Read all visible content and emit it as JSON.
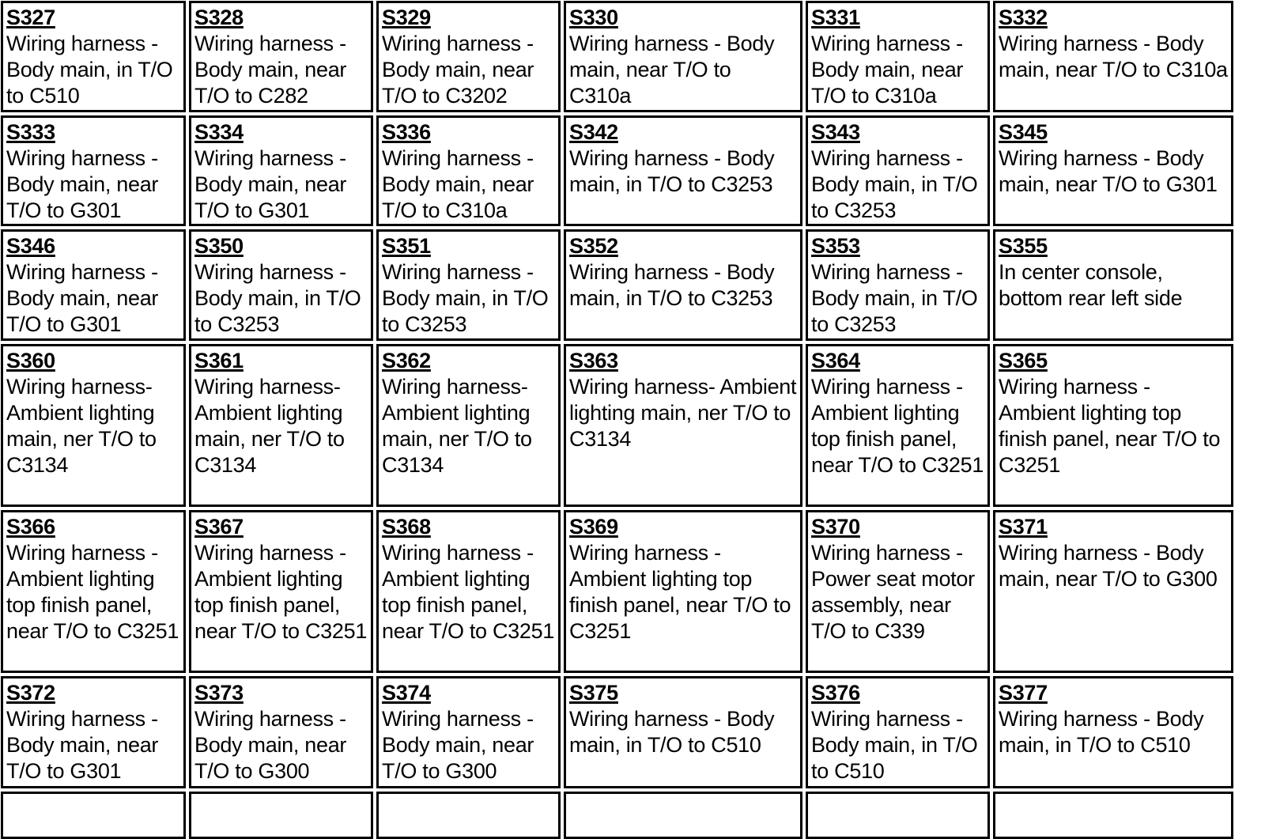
{
  "splices": [
    {
      "code": "S327",
      "desc": "Wiring harness - Body main, in T/O to C510"
    },
    {
      "code": "S328",
      "desc": "Wiring harness - Body main, near T/O to C282"
    },
    {
      "code": "S329",
      "desc": "Wiring harness - Body main, near T/O to C3202"
    },
    {
      "code": "S330",
      "desc": "Wiring harness - Body main, near T/O to C310a"
    },
    {
      "code": "S331",
      "desc": "Wiring harness - Body main, near T/O to C310a"
    },
    {
      "code": "S332",
      "desc": "Wiring harness - Body main, near T/O to C310a"
    },
    {
      "code": "S333",
      "desc": "Wiring harness - Body main, near T/O to G301"
    },
    {
      "code": "S334",
      "desc": "Wiring harness - Body main, near T/O to G301"
    },
    {
      "code": "S336",
      "desc": "Wiring harness - Body main, near T/O to C310a"
    },
    {
      "code": "S342",
      "desc": "Wiring harness - Body main, in T/O to C3253"
    },
    {
      "code": "S343",
      "desc": "Wiring harness - Body main, in T/O to C3253"
    },
    {
      "code": "S345",
      "desc": "Wiring harness - Body main, near T/O to G301"
    },
    {
      "code": "S346",
      "desc": "Wiring harness - Body main, near T/O to G301"
    },
    {
      "code": "S350",
      "desc": "Wiring harness - Body main, in T/O to C3253"
    },
    {
      "code": "S351",
      "desc": "Wiring harness - Body main, in T/O to C3253"
    },
    {
      "code": "S352",
      "desc": "Wiring harness - Body main, in T/O to C3253"
    },
    {
      "code": "S353",
      "desc": "Wiring harness - Body main, in T/O to C3253"
    },
    {
      "code": "S355",
      "desc": "In center console, bottom rear left side"
    },
    {
      "code": "S360",
      "desc": "Wiring harness- Ambient lighting main, ner T/O to C3134"
    },
    {
      "code": "S361",
      "desc": "Wiring harness- Ambient lighting main, ner T/O to C3134"
    },
    {
      "code": "S362",
      "desc": "Wiring harness- Ambient lighting main, ner T/O to C3134"
    },
    {
      "code": "S363",
      "desc": "Wiring harness- Ambient lighting main, ner T/O to C3134"
    },
    {
      "code": "S364",
      "desc": "Wiring harness - Ambient lighting top finish panel, near T/O to C3251"
    },
    {
      "code": "S365",
      "desc": "Wiring harness - Ambient lighting top finish panel, near T/O to C3251"
    },
    {
      "code": "S366",
      "desc": "Wiring harness - Ambient lighting top finish panel, near T/O to C3251"
    },
    {
      "code": "S367",
      "desc": "Wiring harness - Ambient lighting top finish panel, near T/O to C3251"
    },
    {
      "code": "S368",
      "desc": "Wiring harness - Ambient lighting top finish panel, near T/O to C3251"
    },
    {
      "code": "S369",
      "desc": "Wiring harness - Ambient lighting top finish panel, near T/O to C3251"
    },
    {
      "code": "S370",
      "desc": "Wiring harness - Power seat motor assembly, near T/O to C339"
    },
    {
      "code": "S371",
      "desc": "Wiring harness - Body main, near T/O to G300"
    },
    {
      "code": "S372",
      "desc": "Wiring harness - Body main, near T/O to G301"
    },
    {
      "code": "S373",
      "desc": "Wiring harness - Body main, near T/O to G300"
    },
    {
      "code": "S374",
      "desc": "Wiring harness - Body main, near T/O to G300"
    },
    {
      "code": "S375",
      "desc": "Wiring harness - Body main, in T/O to C510"
    },
    {
      "code": "S376",
      "desc": "Wiring harness - Body main, in T/O to C510"
    },
    {
      "code": "S377",
      "desc": "Wiring harness - Body main, in T/O to C510"
    }
  ]
}
